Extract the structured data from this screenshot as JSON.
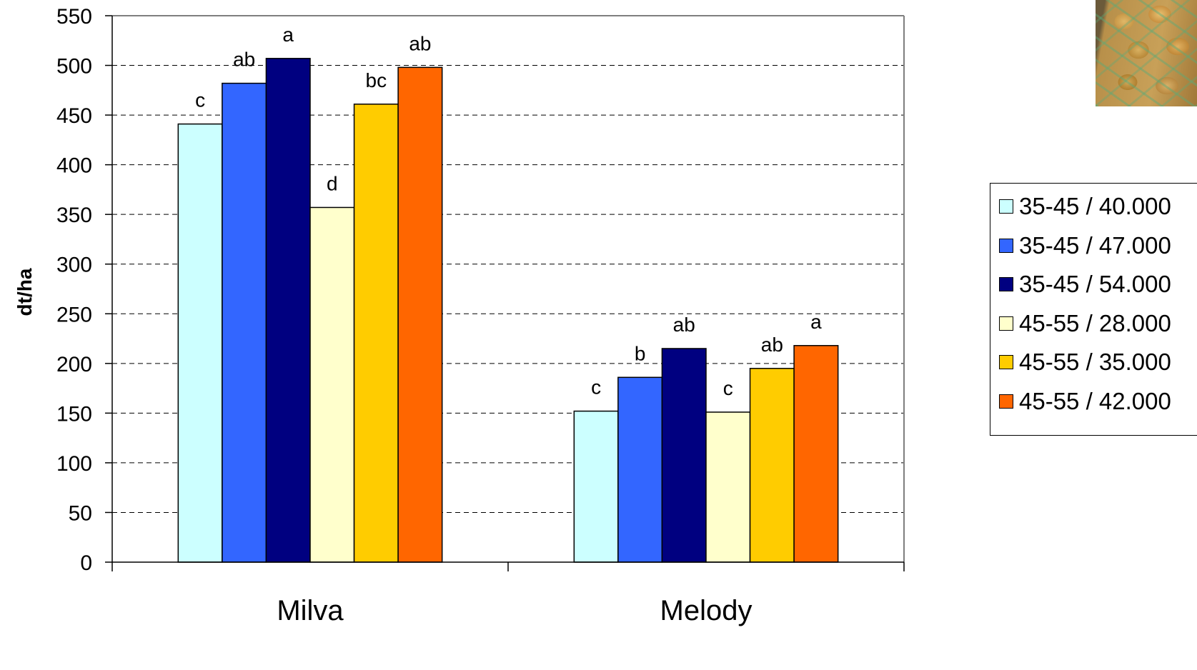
{
  "chart_data": {
    "type": "bar",
    "title": "",
    "xlabel": "",
    "ylabel": "dt/ha",
    "ylim": [
      0,
      550
    ],
    "ytick_step": 50,
    "grid": true,
    "legend_position": "right",
    "categories": [
      "Milva",
      "Melody"
    ],
    "series": [
      {
        "name": "35-45 / 40.000",
        "color": "#ccffff",
        "values": [
          441,
          152
        ],
        "labels": [
          "c",
          "c"
        ]
      },
      {
        "name": "35-45 / 47.000",
        "color": "#3366ff",
        "values": [
          482,
          186
        ],
        "labels": [
          "ab",
          "b"
        ]
      },
      {
        "name": "35-45 / 54.000",
        "color": "#000080",
        "values": [
          507,
          215
        ],
        "labels": [
          "a",
          "ab"
        ]
      },
      {
        "name": "45-55 / 28.000",
        "color": "#ffffcc",
        "values": [
          357,
          151
        ],
        "labels": [
          "d",
          "c"
        ]
      },
      {
        "name": "45-55 / 35.000",
        "color": "#ffcc00",
        "values": [
          461,
          195
        ],
        "labels": [
          "bc",
          "ab"
        ]
      },
      {
        "name": "45-55 / 42.000",
        "color": "#ff6600",
        "values": [
          498,
          218
        ],
        "labels": [
          "ab",
          "a"
        ]
      }
    ]
  }
}
